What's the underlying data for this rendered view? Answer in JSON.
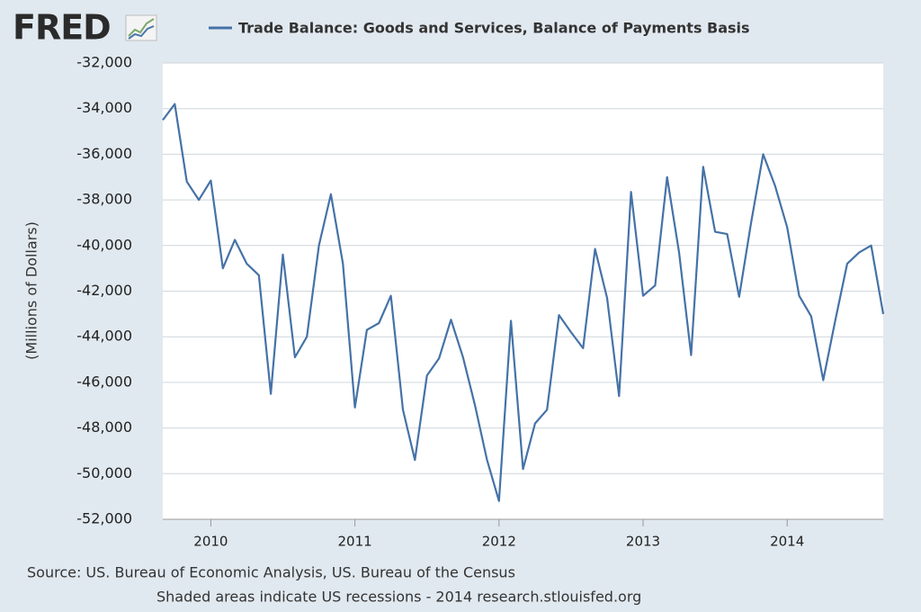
{
  "logo": "FRED",
  "chart_data": {
    "type": "line",
    "legend_label": "Trade Balance: Goods and Services, Balance of Payments Basis",
    "y_axis_label": "(Millions of Dollars)",
    "source": "Source: US. Bureau of Economic Analysis, US. Bureau of the Census",
    "note": "Shaded areas indicate US recessions - 2014 research.stlouisfed.org",
    "grid": true,
    "x": [
      "2009-09",
      "2009-10",
      "2009-11",
      "2009-12",
      "2010-01",
      "2010-02",
      "2010-03",
      "2010-04",
      "2010-05",
      "2010-06",
      "2010-07",
      "2010-08",
      "2010-09",
      "2010-10",
      "2010-11",
      "2010-12",
      "2011-01",
      "2011-02",
      "2011-03",
      "2011-04",
      "2011-05",
      "2011-06",
      "2011-07",
      "2011-08",
      "2011-09",
      "2011-10",
      "2011-11",
      "2011-12",
      "2012-01",
      "2012-02",
      "2012-03",
      "2012-04",
      "2012-05",
      "2012-06",
      "2012-07",
      "2012-08",
      "2012-09",
      "2012-10",
      "2012-11",
      "2012-12",
      "2013-01",
      "2013-02",
      "2013-03",
      "2013-04",
      "2013-05",
      "2013-06",
      "2013-07",
      "2013-08",
      "2013-09",
      "2013-10",
      "2013-11",
      "2013-12",
      "2014-01",
      "2014-02",
      "2014-03",
      "2014-04",
      "2014-05",
      "2014-06",
      "2014-07",
      "2014-08",
      "2014-09"
    ],
    "series": [
      {
        "name": "Trade Balance: Goods and Services, Balance of Payments Basis",
        "color": "#4572a7",
        "values": [
          -34500,
          -33800,
          -37200,
          -38000,
          -37150,
          -41000,
          -39750,
          -40800,
          -41300,
          -46500,
          -40400,
          -44900,
          -44000,
          -40000,
          -37750,
          -40800,
          -47100,
          -43700,
          -43400,
          -42200,
          -47200,
          -49400,
          -45700,
          -44950,
          -43250,
          -44900,
          -47000,
          -49400,
          -51200,
          -43300,
          -49800,
          -47800,
          -47200,
          -43050,
          -43800,
          -44500,
          -40150,
          -42300,
          -46600,
          -37650,
          -42200,
          -41750,
          -37000,
          -40300,
          -44800,
          -36550,
          -39400,
          -39500,
          -42250,
          -39000,
          -36000,
          -37400,
          -39200,
          -42200,
          -43100,
          -45900,
          -43300,
          -40800,
          -40300,
          -40000,
          -43000
        ]
      }
    ],
    "xlim": [
      "2009-09",
      "2014-09"
    ],
    "xticks": [
      {
        "value": "2010-01",
        "label": "2010"
      },
      {
        "value": "2011-01",
        "label": "2011"
      },
      {
        "value": "2012-01",
        "label": "2012"
      },
      {
        "value": "2013-01",
        "label": "2013"
      },
      {
        "value": "2014-01",
        "label": "2014"
      }
    ],
    "ylim": [
      -52000,
      -32000
    ],
    "yticks": [
      {
        "value": -52000,
        "label": "-52,000"
      },
      {
        "value": -50000,
        "label": "-50,000"
      },
      {
        "value": -48000,
        "label": "-48,000"
      },
      {
        "value": -46000,
        "label": "-46,000"
      },
      {
        "value": -44000,
        "label": "-44,000"
      },
      {
        "value": -42000,
        "label": "-42,000"
      },
      {
        "value": -40000,
        "label": "-40,000"
      },
      {
        "value": -38000,
        "label": "-38,000"
      },
      {
        "value": -36000,
        "label": "-36,000"
      },
      {
        "value": -34000,
        "label": "-34,000"
      },
      {
        "value": -32000,
        "label": "-32,000"
      }
    ]
  }
}
